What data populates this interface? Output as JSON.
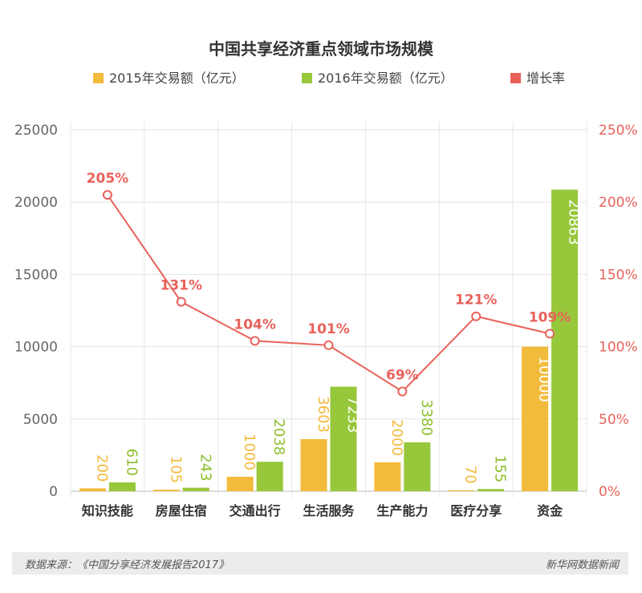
{
  "chart_data": {
    "type": "bar",
    "title": "中国共享经济重点领域市场规模",
    "categories": [
      "知识技能",
      "房屋住宿",
      "交通出行",
      "生活服务",
      "生产能力",
      "医疗分享",
      "资金"
    ],
    "series": [
      {
        "name": "2015年交易额（亿元）",
        "type": "bar",
        "axis": "left",
        "color": "#f3bb3c",
        "labelColor": "#f3bb3c",
        "values": [
          200,
          105,
          1000,
          3603,
          2000,
          70,
          10000
        ]
      },
      {
        "name": "2016年交易额（亿元）",
        "type": "bar",
        "axis": "left",
        "color": "#97c73a",
        "labelColor": "#8dbf2d",
        "values": [
          610,
          243,
          2038,
          7233,
          3380,
          155,
          20863
        ]
      },
      {
        "name": "增长率",
        "type": "line",
        "axis": "right",
        "color": "#e8625a",
        "values": [
          205,
          131,
          104,
          101,
          69,
          121,
          109
        ],
        "labels": [
          "205%",
          "131%",
          "104%",
          "101%",
          "69%",
          "121%",
          "109%"
        ]
      }
    ],
    "yAxisLeft": {
      "ylim": [
        0,
        25000
      ],
      "ticks": [
        "0",
        "5000",
        "10000",
        "15000",
        "20000",
        "25000"
      ],
      "tickValues": [
        0,
        5000,
        10000,
        15000,
        20000,
        25000
      ]
    },
    "yAxisRight": {
      "ylim": [
        0,
        250
      ],
      "ticks": [
        "0%",
        "50%",
        "100%",
        "150%",
        "200%",
        "250%"
      ],
      "tickValues": [
        0,
        50,
        100,
        150,
        200,
        250
      ],
      "color": "#e8625a"
    },
    "legend": "top-center",
    "grid": true
  },
  "footer": {
    "source": "数据来源：《中国分享经济发展报告2017》",
    "brand": "新华网数据新闻"
  }
}
